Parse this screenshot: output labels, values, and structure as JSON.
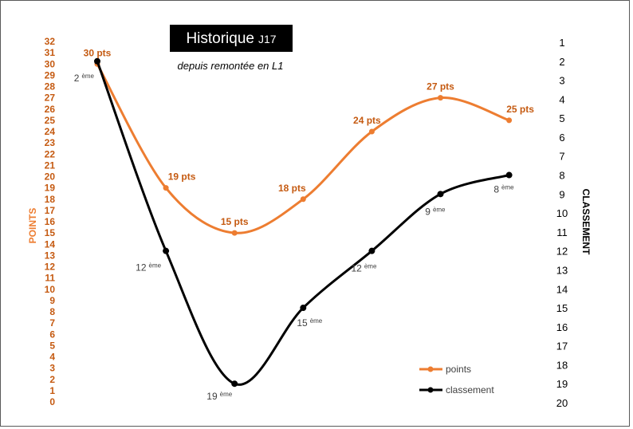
{
  "chart_data": {
    "type": "line",
    "title": "Historique",
    "title_suffix": "J17",
    "subtitle": "depuis remontée en L1",
    "ylabel": "POINTS",
    "y2label": "CLASSEMENT",
    "ylim": [
      0,
      32
    ],
    "y2lim": [
      1,
      20
    ],
    "y2_inverted": true,
    "y_ticks": [
      0,
      1,
      2,
      3,
      4,
      5,
      6,
      7,
      8,
      9,
      10,
      11,
      12,
      13,
      14,
      15,
      16,
      17,
      18,
      19,
      20,
      21,
      22,
      23,
      24,
      25,
      26,
      27,
      28,
      29,
      30,
      31,
      32
    ],
    "y2_ticks": [
      1,
      2,
      3,
      4,
      5,
      6,
      7,
      8,
      9,
      10,
      11,
      12,
      13,
      14,
      15,
      16,
      17,
      18,
      19,
      20
    ],
    "grid": false,
    "legend_position": "bottom-right",
    "series": [
      {
        "name": "points",
        "axis": "left",
        "color": "#ed7d31",
        "values": [
          30,
          19,
          15,
          18,
          24,
          27,
          25
        ],
        "labels": [
          "30 pts",
          "19 pts",
          "15 pts",
          "18 pts",
          "24 pts",
          "27 pts",
          "25 pts"
        ]
      },
      {
        "name": "classement",
        "axis": "right",
        "color": "#000000",
        "values": [
          2,
          12,
          19,
          15,
          12,
          9,
          8
        ],
        "labels": [
          "2",
          "12",
          "19",
          "15",
          "12",
          "9",
          "8"
        ],
        "label_suffix": "ème"
      }
    ]
  }
}
